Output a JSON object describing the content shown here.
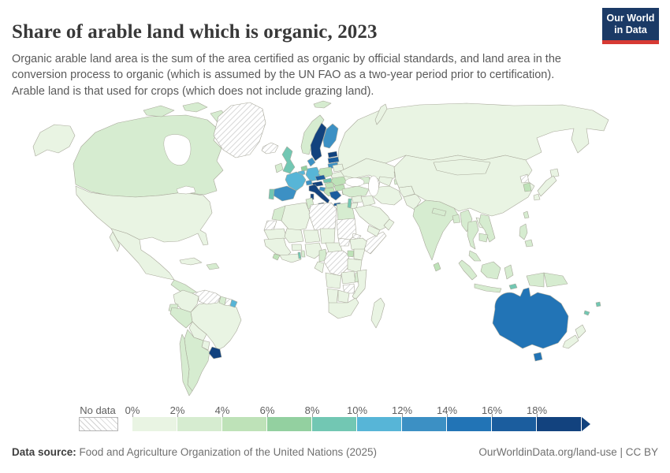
{
  "header": {
    "title": "Share of arable land which is organic, 2023",
    "subtitle": "Organic arable land area is the sum of the area certified as organic by official standards, and land area in the conversion process to organic (which is assumed by the UN FAO as a two-year period prior to certification). Arable land is that used for crops (which does not include grazing land).",
    "logo": {
      "line1": "Our World",
      "line2": "in Data",
      "bg": "#1b3a66",
      "accent": "#d73a34"
    }
  },
  "legend": {
    "no_data_label": "No data",
    "ticks": [
      "0%",
      "2%",
      "4%",
      "6%",
      "8%",
      "10%",
      "12%",
      "14%",
      "16%",
      "18%"
    ],
    "colors": [
      "#e9f4e3",
      "#d6ecd0",
      "#bee2b8",
      "#93d0a0",
      "#72c7b3",
      "#57b5d7",
      "#3c90c4",
      "#2274b6",
      "#1b5d9e",
      "#12427e"
    ]
  },
  "map": {
    "ocean_color": "#ffffff",
    "border_color": "#a8a89a",
    "hatch_line_color": "#c9c9c9"
  },
  "footer": {
    "source_label": "Data source:",
    "source_text": " Food and Agriculture Organization of the United Nations (2025)",
    "link_text": "OurWorldinData.org/land-use | CC BY"
  },
  "chart_data": {
    "type": "heatmap",
    "subtype": "choropleth-world-map",
    "title": "Share of arable land which is organic, 2023",
    "unit": "%",
    "colorscale_ticks": [
      "0%",
      "2%",
      "4%",
      "6%",
      "8%",
      "10%",
      "12%",
      "14%",
      "16%",
      "18%"
    ],
    "bucket_labels": [
      "0-2%",
      "2-4%",
      "4-6%",
      "6-8%",
      "8-10%",
      "10-12%",
      "12-14%",
      "14-16%",
      "16-18%",
      "18%+"
    ],
    "no_data_bucket_index": -1,
    "values": [
      [
        "united-states",
        "United States",
        0
      ],
      [
        "canada",
        "Canada",
        1
      ],
      [
        "greenland",
        "Greenland",
        -1
      ],
      [
        "iceland",
        "Iceland",
        -1
      ],
      [
        "mexico",
        "Mexico",
        0
      ],
      [
        "central-america",
        "Central America",
        1
      ],
      [
        "cuba",
        "Cuba",
        0
      ],
      [
        "hispaniola",
        "Dominican Republic & Haiti",
        1
      ],
      [
        "colombia",
        "Colombia",
        0
      ],
      [
        "venezuela",
        "Venezuela",
        -1
      ],
      [
        "guyana",
        "Guyana",
        1
      ],
      [
        "suriname",
        "Suriname",
        -1
      ],
      [
        "french-guiana",
        "French Guiana",
        5
      ],
      [
        "ecuador",
        "Ecuador",
        1
      ],
      [
        "peru",
        "Peru",
        1
      ],
      [
        "brazil",
        "Brazil",
        0
      ],
      [
        "bolivia",
        "Bolivia",
        0
      ],
      [
        "paraguay",
        "Paraguay",
        0
      ],
      [
        "chile",
        "Chile",
        1
      ],
      [
        "argentina",
        "Argentina",
        1
      ],
      [
        "uruguay",
        "Uruguay",
        9
      ],
      [
        "svalbard",
        "Svalbard",
        1
      ],
      [
        "norway",
        "Norway",
        1
      ],
      [
        "sweden",
        "Sweden",
        9
      ],
      [
        "finland",
        "Finland",
        6
      ],
      [
        "estonia",
        "Estonia",
        9
      ],
      [
        "latvia",
        "Latvia",
        8
      ],
      [
        "lithuania",
        "Lithuania",
        6
      ],
      [
        "denmark",
        "Denmark",
        6
      ],
      [
        "united-kingdom",
        "United Kingdom",
        4
      ],
      [
        "ireland",
        "Ireland",
        1
      ],
      [
        "netherlands",
        "Netherlands",
        3
      ],
      [
        "belgium",
        "Belgium",
        5
      ],
      [
        "germany",
        "Germany",
        5
      ],
      [
        "poland",
        "Poland",
        2
      ],
      [
        "belarus",
        "Belarus",
        0
      ],
      [
        "ukraine",
        "Ukraine",
        0
      ],
      [
        "czechia",
        "Czechia",
        8
      ],
      [
        "slovakia",
        "Slovakia",
        4
      ],
      [
        "austria",
        "Austria",
        9
      ],
      [
        "switzerland",
        "Switzerland",
        6
      ],
      [
        "france",
        "France",
        5
      ],
      [
        "spain",
        "Spain",
        6
      ],
      [
        "portugal",
        "Portugal",
        4
      ],
      [
        "italy",
        "Italy",
        9
      ],
      [
        "hungary",
        "Hungary",
        2
      ],
      [
        "croatia",
        "Croatia",
        6
      ],
      [
        "balkans",
        "Western Balkans",
        2
      ],
      [
        "romania",
        "Romania",
        2
      ],
      [
        "bulgaria",
        "Bulgaria",
        2
      ],
      [
        "greece",
        "Greece",
        8
      ],
      [
        "cyprus",
        "Cyprus",
        4
      ],
      [
        "morocco",
        "Morocco",
        1
      ],
      [
        "algeria",
        "Algeria",
        0
      ],
      [
        "tunisia",
        "Tunisia",
        1
      ],
      [
        "libya",
        "Libya",
        -1
      ],
      [
        "egypt",
        "Egypt",
        1
      ],
      [
        "western-sahara",
        "Western Sahara",
        -1
      ],
      [
        "mauritania",
        "Mauritania",
        0
      ],
      [
        "mali",
        "Mali",
        0
      ],
      [
        "burkina-faso",
        "Burkina Faso",
        0
      ],
      [
        "niger",
        "Niger",
        0
      ],
      [
        "chad",
        "Chad",
        0
      ],
      [
        "sudan",
        "Sudan",
        -1
      ],
      [
        "eritrea",
        "Eritrea",
        -1
      ],
      [
        "ethiopia",
        "Ethiopia",
        0
      ],
      [
        "somalia",
        "Somalia",
        -1
      ],
      [
        "senegal-guinea",
        "Senegal & Guinea",
        0
      ],
      [
        "sierra-leone",
        "Sierra Leone",
        2
      ],
      [
        "liberia-ghana",
        "Liberia, Cote d'Ivoire & Ghana",
        0
      ],
      [
        "togo",
        "Togo",
        4
      ],
      [
        "benin",
        "Benin",
        1
      ],
      [
        "nigeria",
        "Nigeria",
        0
      ],
      [
        "cameroon",
        "Cameroon",
        1
      ],
      [
        "central-african-republic",
        "Central African Republic",
        0
      ],
      [
        "south-sudan",
        "South Sudan",
        -1
      ],
      [
        "drc",
        "Democratic Republic of Congo",
        -1
      ],
      [
        "congo-gabon",
        "Congo & Gabon",
        0
      ],
      [
        "uganda",
        "Uganda",
        2
      ],
      [
        "kenya",
        "Kenya",
        0
      ],
      [
        "tanzania",
        "Tanzania",
        0
      ],
      [
        "angola",
        "Angola",
        0
      ],
      [
        "zambia",
        "Zambia",
        0
      ],
      [
        "malawi",
        "Malawi",
        1
      ],
      [
        "mozambique",
        "Mozambique",
        0
      ],
      [
        "zimbabwe",
        "Zimbabwe",
        -1
      ],
      [
        "botswana",
        "Botswana",
        0
      ],
      [
        "namibia",
        "Namibia",
        0
      ],
      [
        "south-africa",
        "South Africa",
        0
      ],
      [
        "madagascar",
        "Madagascar",
        0
      ],
      [
        "russia",
        "Russia",
        0
      ],
      [
        "kazakhstan",
        "Kazakhstan",
        0
      ],
      [
        "uzbekistan",
        "Uzbekistan",
        0
      ],
      [
        "turkmenistan",
        "Turkmenistan",
        -1
      ],
      [
        "kyrgyzstan",
        "Kyrgyzstan",
        1
      ],
      [
        "tajikistan",
        "Tajikistan",
        1
      ],
      [
        "caucasus",
        "Caucasus",
        1
      ],
      [
        "turkey",
        "Turkey",
        1
      ],
      [
        "syria",
        "Syria",
        0
      ],
      [
        "israel-lebanon",
        "Israel & Lebanon",
        4
      ],
      [
        "jordan",
        "Jordan",
        0
      ],
      [
        "iraq",
        "Iraq",
        0
      ],
      [
        "iran",
        "Iran",
        0
      ],
      [
        "afghanistan",
        "Afghanistan",
        0
      ],
      [
        "pakistan",
        "Pakistan",
        0
      ],
      [
        "saudi-arabia",
        "Saudi Arabia",
        0
      ],
      [
        "yemen",
        "Yemen",
        0
      ],
      [
        "oman",
        "Oman",
        0
      ],
      [
        "india",
        "India",
        1
      ],
      [
        "nepal",
        "Nepal",
        1
      ],
      [
        "sri-lanka",
        "Sri Lanka",
        2
      ],
      [
        "bangladesh",
        "Bangladesh",
        1
      ],
      [
        "myanmar",
        "Myanmar",
        1
      ],
      [
        "thailand",
        "Thailand",
        1
      ],
      [
        "laos",
        "Laos",
        0
      ],
      [
        "vietnam",
        "Vietnam",
        1
      ],
      [
        "cambodia",
        "Cambodia",
        1
      ],
      [
        "malaysia",
        "Malaysia",
        1
      ],
      [
        "china",
        "China",
        0
      ],
      [
        "mongolia",
        "Mongolia",
        0
      ],
      [
        "north-korea",
        "North Korea",
        -1
      ],
      [
        "south-korea",
        "South Korea",
        2
      ],
      [
        "japan",
        "Japan",
        0
      ],
      [
        "taiwan",
        "Taiwan",
        1
      ],
      [
        "philippines",
        "Philippines",
        1
      ],
      [
        "indonesia",
        "Indonesia",
        1
      ],
      [
        "papua-new-guinea",
        "Papua New Guinea",
        1
      ],
      [
        "timor-leste",
        "Timor-Leste",
        4
      ],
      [
        "australia",
        "Australia",
        7
      ],
      [
        "new-zealand",
        "New Zealand",
        0
      ],
      [
        "fiji",
        "Fiji",
        4
      ],
      [
        "new-caledonia",
        "New Caledonia",
        4
      ]
    ]
  }
}
